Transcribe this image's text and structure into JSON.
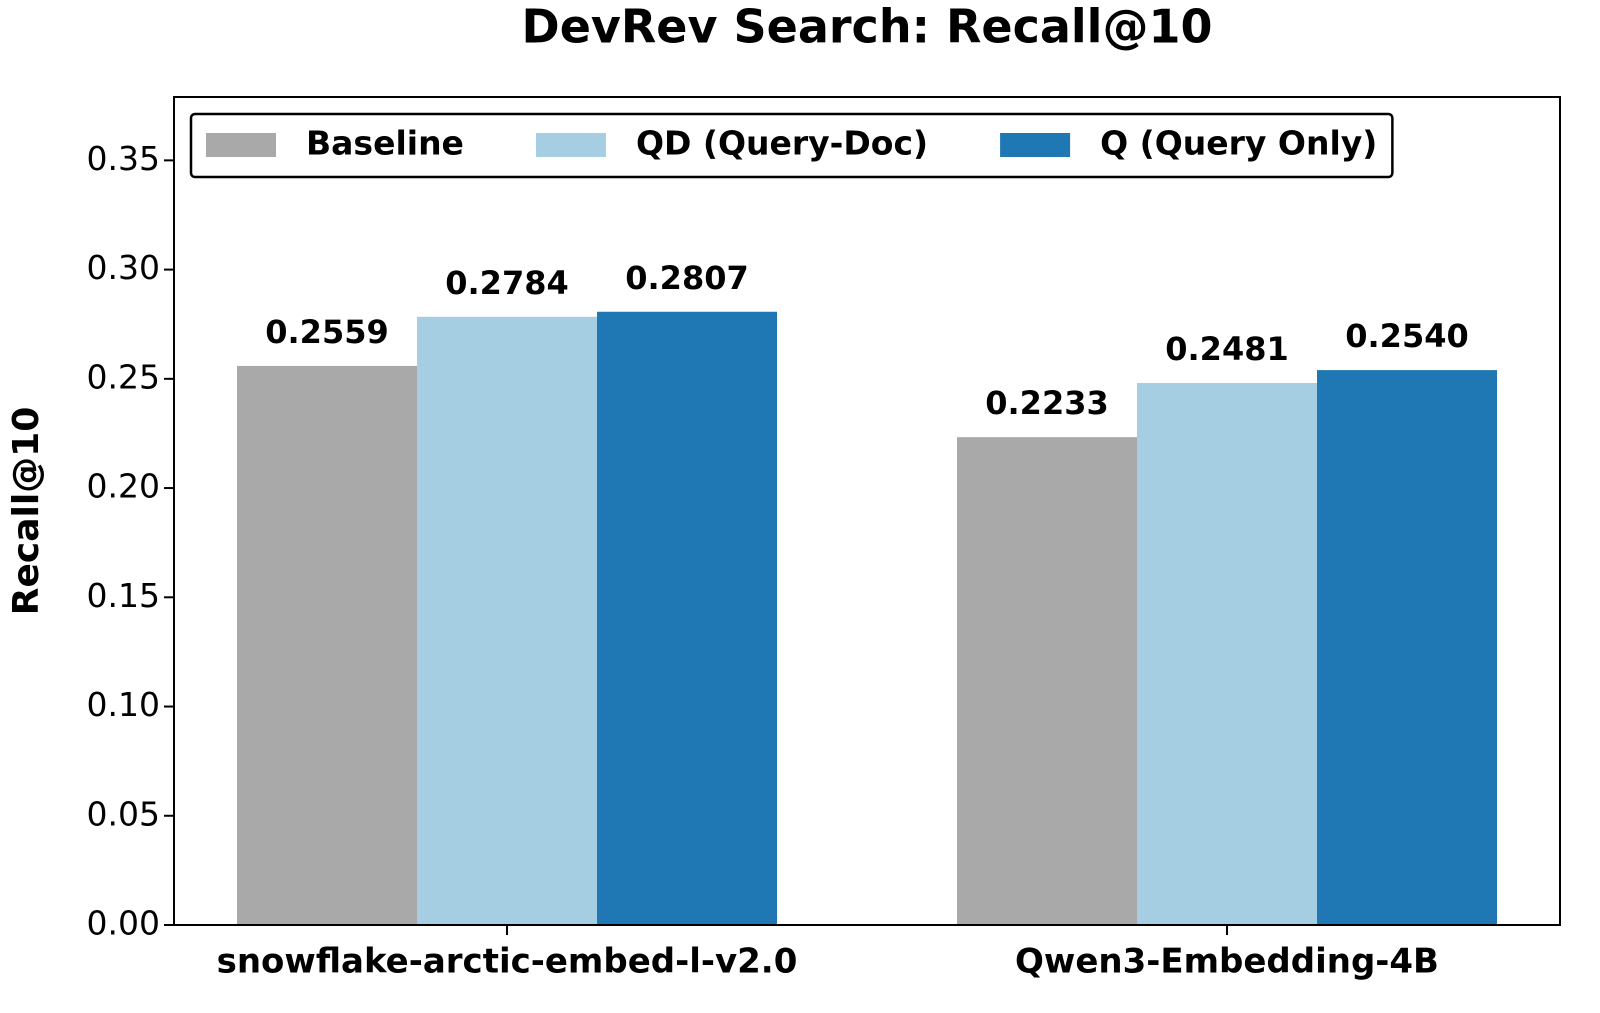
{
  "chart_data": {
    "type": "bar",
    "title": "DevRev Search: Recall@10",
    "y_label": "Recall@10",
    "categories": [
      "snowflake-arctic-embed-l-v2.0",
      "Qwen3-Embedding-4B"
    ],
    "series": [
      {
        "name": "Baseline",
        "color": "#a9a9a9",
        "values": [
          0.2559,
          0.2233
        ]
      },
      {
        "name": "QD (Query-Doc)",
        "color": "#a6cee3",
        "values": [
          0.2784,
          0.2481
        ],
        "value_labels": [
          "0.2784",
          "0.2481"
        ]
      },
      {
        "name": "Q (Query Only)",
        "color": "#1f78b4",
        "values": [
          0.2807,
          0.254
        ],
        "value_labels": [
          "0.2807",
          "0.2540"
        ]
      }
    ],
    "ylim": [
      0,
      0.379
    ],
    "yticks": [
      {
        "value": 0,
        "label": "0.00"
      },
      0.05,
      {
        "value": 0.1,
        "label": "0.10"
      },
      0.15,
      {
        "value": 0.2,
        "label": "0.20"
      },
      0.25,
      {
        "value": 0.3,
        "label": "0.30"
      },
      0.35
    ],
    "legend": "upper left",
    "grid": false
  }
}
